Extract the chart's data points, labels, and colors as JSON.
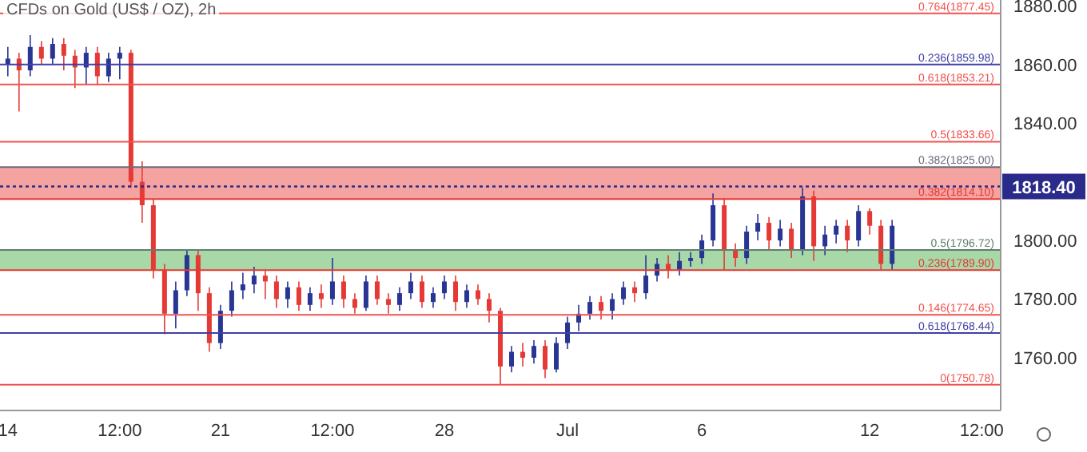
{
  "chart_data": {
    "type": "candlestick",
    "title": "CFDs on Gold (US$ / OZ), 2h",
    "categories": [
      "14",
      null,
      null,
      null,
      null,
      null,
      null,
      null,
      null,
      null,
      "12:00",
      null,
      null,
      null,
      null,
      null,
      null,
      null,
      null,
      "21",
      null,
      null,
      null,
      null,
      null,
      null,
      null,
      null,
      null,
      "12:00",
      null,
      null,
      null,
      null,
      null,
      null,
      null,
      null,
      null,
      "28",
      null,
      null,
      null,
      null,
      null,
      null,
      null,
      null,
      null,
      null,
      "Jul",
      null,
      null,
      null,
      null,
      null,
      null,
      null,
      null,
      null,
      null,
      null,
      "6",
      null,
      null,
      null,
      null,
      null,
      null,
      null,
      null,
      null,
      null,
      null,
      null,
      null,
      null,
      "12",
      null,
      null,
      null,
      null,
      null,
      null,
      null,
      null,
      null,
      "12:00",
      null
    ],
    "ohlc": [
      [
        1860,
        1866,
        1856,
        1862
      ],
      [
        1862,
        1864,
        1844,
        1858
      ],
      [
        1858,
        1870,
        1856,
        1866
      ],
      [
        1866,
        1868,
        1860,
        1862
      ],
      [
        1862,
        1869,
        1860,
        1867
      ],
      [
        1867,
        1869,
        1858,
        1863
      ],
      [
        1863,
        1865,
        1852,
        1859
      ],
      [
        1859,
        1866,
        1853,
        1864
      ],
      [
        1864,
        1866,
        1853,
        1856
      ],
      [
        1856,
        1864,
        1854,
        1862
      ],
      [
        1862,
        1866,
        1855,
        1864
      ],
      [
        1864,
        1865,
        1818,
        1820
      ],
      [
        1820,
        1827,
        1806,
        1812
      ],
      [
        1812,
        1814,
        1787,
        1790
      ],
      [
        1790,
        1792,
        1768,
        1775
      ],
      [
        1775,
        1786,
        1770,
        1783
      ],
      [
        1783,
        1797,
        1781,
        1795
      ],
      [
        1795,
        1797,
        1776,
        1782
      ],
      [
        1782,
        1784,
        1762,
        1765
      ],
      [
        1765,
        1778,
        1763,
        1776
      ],
      [
        1776,
        1786,
        1774,
        1783
      ],
      [
        1783,
        1789,
        1780,
        1785
      ],
      [
        1785,
        1791,
        1782,
        1788
      ],
      [
        1788,
        1790,
        1780,
        1786
      ],
      [
        1786,
        1788,
        1777,
        1780
      ],
      [
        1780,
        1786,
        1777,
        1784
      ],
      [
        1784,
        1786,
        1776,
        1778
      ],
      [
        1778,
        1784,
        1776,
        1782
      ],
      [
        1782,
        1785,
        1777,
        1780
      ],
      [
        1780,
        1794,
        1778,
        1786
      ],
      [
        1786,
        1788,
        1777,
        1780
      ],
      [
        1780,
        1782,
        1775,
        1777
      ],
      [
        1777,
        1788,
        1776,
        1786
      ],
      [
        1786,
        1788,
        1778,
        1780
      ],
      [
        1780,
        1782,
        1775,
        1778
      ],
      [
        1778,
        1784,
        1776,
        1782
      ],
      [
        1782,
        1789,
        1780,
        1786
      ],
      [
        1786,
        1788,
        1777,
        1779
      ],
      [
        1779,
        1784,
        1777,
        1782
      ],
      [
        1782,
        1788,
        1780,
        1786
      ],
      [
        1786,
        1788,
        1776,
        1779
      ],
      [
        1779,
        1785,
        1777,
        1783
      ],
      [
        1783,
        1785,
        1778,
        1780
      ],
      [
        1780,
        1782,
        1772,
        1776
      ],
      [
        1776,
        1777,
        1751,
        1757
      ],
      [
        1757,
        1764,
        1755,
        1762
      ],
      [
        1762,
        1765,
        1757,
        1760
      ],
      [
        1760,
        1766,
        1758,
        1764
      ],
      [
        1764,
        1766,
        1753,
        1756
      ],
      [
        1756,
        1767,
        1755,
        1765
      ],
      [
        1765,
        1774,
        1763,
        1772
      ],
      [
        1772,
        1778,
        1769,
        1775
      ],
      [
        1775,
        1781,
        1773,
        1779
      ],
      [
        1779,
        1781,
        1773,
        1776
      ],
      [
        1776,
        1782,
        1773,
        1780
      ],
      [
        1780,
        1786,
        1778,
        1784
      ],
      [
        1784,
        1786,
        1779,
        1782
      ],
      [
        1782,
        1795,
        1780,
        1788
      ],
      [
        1788,
        1794,
        1786,
        1792
      ],
      [
        1792,
        1795,
        1787,
        1790
      ],
      [
        1790,
        1796,
        1788,
        1793
      ],
      [
        1793,
        1796,
        1791,
        1794
      ],
      [
        1794,
        1802,
        1792,
        1800
      ],
      [
        1800,
        1816,
        1798,
        1812
      ],
      [
        1812,
        1814,
        1790,
        1797
      ],
      [
        1797,
        1799,
        1791,
        1794
      ],
      [
        1794,
        1805,
        1792,
        1803
      ],
      [
        1803,
        1809,
        1800,
        1806
      ],
      [
        1806,
        1808,
        1797,
        1800
      ],
      [
        1800,
        1807,
        1798,
        1804
      ],
      [
        1804,
        1806,
        1794,
        1797
      ],
      [
        1797,
        1818,
        1795,
        1815
      ],
      [
        1815,
        1817,
        1793,
        1798
      ],
      [
        1798,
        1805,
        1795,
        1802
      ],
      [
        1802,
        1807,
        1799,
        1805
      ],
      [
        1805,
        1807,
        1796,
        1800
      ],
      [
        1800,
        1812,
        1798,
        1810
      ],
      [
        1810,
        1811,
        1802,
        1805
      ],
      [
        1805,
        1807,
        1790,
        1792
      ],
      [
        1792,
        1807,
        1790,
        1805
      ],
      null,
      null,
      null,
      null,
      null,
      null,
      null,
      null,
      null
    ],
    "colors": [
      "#283593",
      "#e53935",
      "#283593",
      "#e53935",
      "#283593",
      "#e53935",
      "#e53935",
      "#283593",
      "#e53935",
      "#283593",
      "#283593",
      "#e53935",
      "#e53935",
      "#e53935",
      "#e53935",
      "#283593",
      "#283593",
      "#e53935",
      "#e53935",
      "#283593",
      "#283593",
      "#283593",
      "#283593",
      "#e53935",
      "#e53935",
      "#283593",
      "#e53935",
      "#283593",
      "#e53935",
      "#283593",
      "#e53935",
      "#e53935",
      "#283593",
      "#e53935",
      "#e53935",
      "#283593",
      "#283593",
      "#e53935",
      "#283593",
      "#283593",
      "#e53935",
      "#283593",
      "#e53935",
      "#e53935",
      "#e53935",
      "#283593",
      "#e53935",
      "#283593",
      "#e53935",
      "#283593",
      "#283593",
      "#283593",
      "#283593",
      "#e53935",
      "#283593",
      "#283593",
      "#e53935",
      "#283593",
      "#283593",
      "#e53935",
      "#283593",
      "#283593",
      "#283593",
      "#283593",
      "#e53935",
      "#e53935",
      "#283593",
      "#283593",
      "#e53935",
      "#283593",
      "#e53935",
      "#283593",
      "#e53935",
      "#283593",
      "#283593",
      "#e53935",
      "#283593",
      "#e53935",
      "#e53935",
      "#283593",
      null,
      null,
      null,
      null,
      null,
      null,
      null,
      null,
      null
    ],
    "ylim": [
      1742,
      1882
    ],
    "yticks": [
      {
        "value": 1760,
        "label": "1760.00"
      },
      {
        "value": 1780,
        "label": "1780.00"
      },
      {
        "value": 1800,
        "label": "1800.00"
      },
      {
        "value": 1840,
        "label": "1840.00"
      },
      {
        "value": 1860,
        "label": "1860.00"
      },
      {
        "value": 1880,
        "label": "1880.00"
      }
    ],
    "bands": [
      {
        "axis": "y",
        "from": 1814.1,
        "to": 1825,
        "color": "#f5a3a0"
      },
      {
        "axis": "y",
        "from": 1789.9,
        "to": 1796.72,
        "color": "#a8d8a8"
      }
    ],
    "ref_lines": [
      {
        "axis": "y",
        "value": 1877.45,
        "label": "0.764(1877.45)",
        "color": "#ef5350"
      },
      {
        "axis": "y",
        "value": 1859.98,
        "label": "0.236(1859.98)",
        "color": "#3f3fa8"
      },
      {
        "axis": "y",
        "value": 1853.21,
        "label": "0.618(1853.21)",
        "color": "#ef5350"
      },
      {
        "axis": "y",
        "value": 1833.66,
        "label": "0.5(1833.66)",
        "color": "#ef5350"
      },
      {
        "axis": "y",
        "value": 1825,
        "label": "0.382(1825.00)",
        "color": "#6b6b7a"
      },
      {
        "axis": "y",
        "value": 1814.1,
        "label": "0.382(1814.10)",
        "color": "#e53935"
      },
      {
        "axis": "y",
        "value": 1796.72,
        "label": "0.5(1796.72)",
        "color": "#5f7f6f"
      },
      {
        "axis": "y",
        "value": 1789.9,
        "label": "0.236(1789.90)",
        "color": "#e53935"
      },
      {
        "axis": "y",
        "value": 1774.65,
        "label": "0.146(1774.65)",
        "color": "#ef5350"
      },
      {
        "axis": "y",
        "value": 1768.44,
        "label": "0.618(1768.44)",
        "color": "#3f3fa8"
      },
      {
        "axis": "y",
        "value": 1750.78,
        "label": "0(1750.78)",
        "color": "#ef5350"
      },
      {
        "axis": "y",
        "value": 1818.4,
        "label": "1818.40",
        "color": "#2a2a8a",
        "line_style": "dotted"
      }
    ]
  }
}
